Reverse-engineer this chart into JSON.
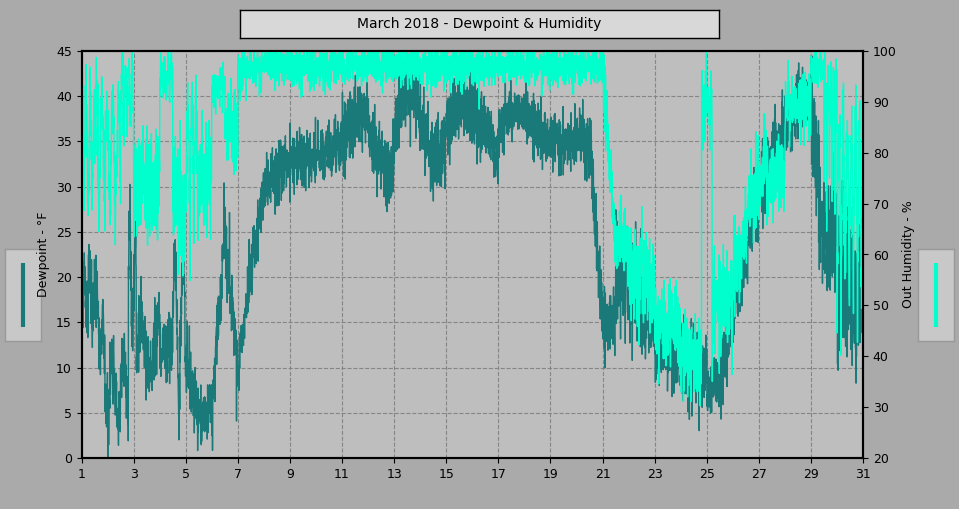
{
  "title": "March 2018 - Dewpoint & Humidity",
  "bg_color": "#aaaaaa",
  "plot_bg_color": "#bebebe",
  "dewpoint_color": "#1a7a7a",
  "humidity_color": "#00ffcc",
  "ylabel_left": "Dewpoint - °F",
  "ylabel_right": "Out Humidity - %",
  "ylim_left": [
    0.0,
    45.0
  ],
  "ylim_right": [
    20,
    100
  ],
  "yticks_left": [
    0.0,
    5.0,
    10.0,
    15.0,
    20.0,
    25.0,
    30.0,
    35.0,
    40.0,
    45.0
  ],
  "yticks_right": [
    20,
    30,
    40,
    50,
    60,
    70,
    80,
    90,
    100
  ],
  "xticks": [
    1,
    3,
    5,
    7,
    9,
    11,
    13,
    15,
    17,
    19,
    21,
    23,
    25,
    27,
    29,
    31
  ],
  "xlim": [
    1,
    31
  ],
  "linewidth_dew": 1.0,
  "linewidth_hum": 1.0,
  "grid_color": "#808080",
  "grid_style": "--",
  "title_fontsize": 10,
  "axis_fontsize": 9,
  "tick_fontsize": 9
}
